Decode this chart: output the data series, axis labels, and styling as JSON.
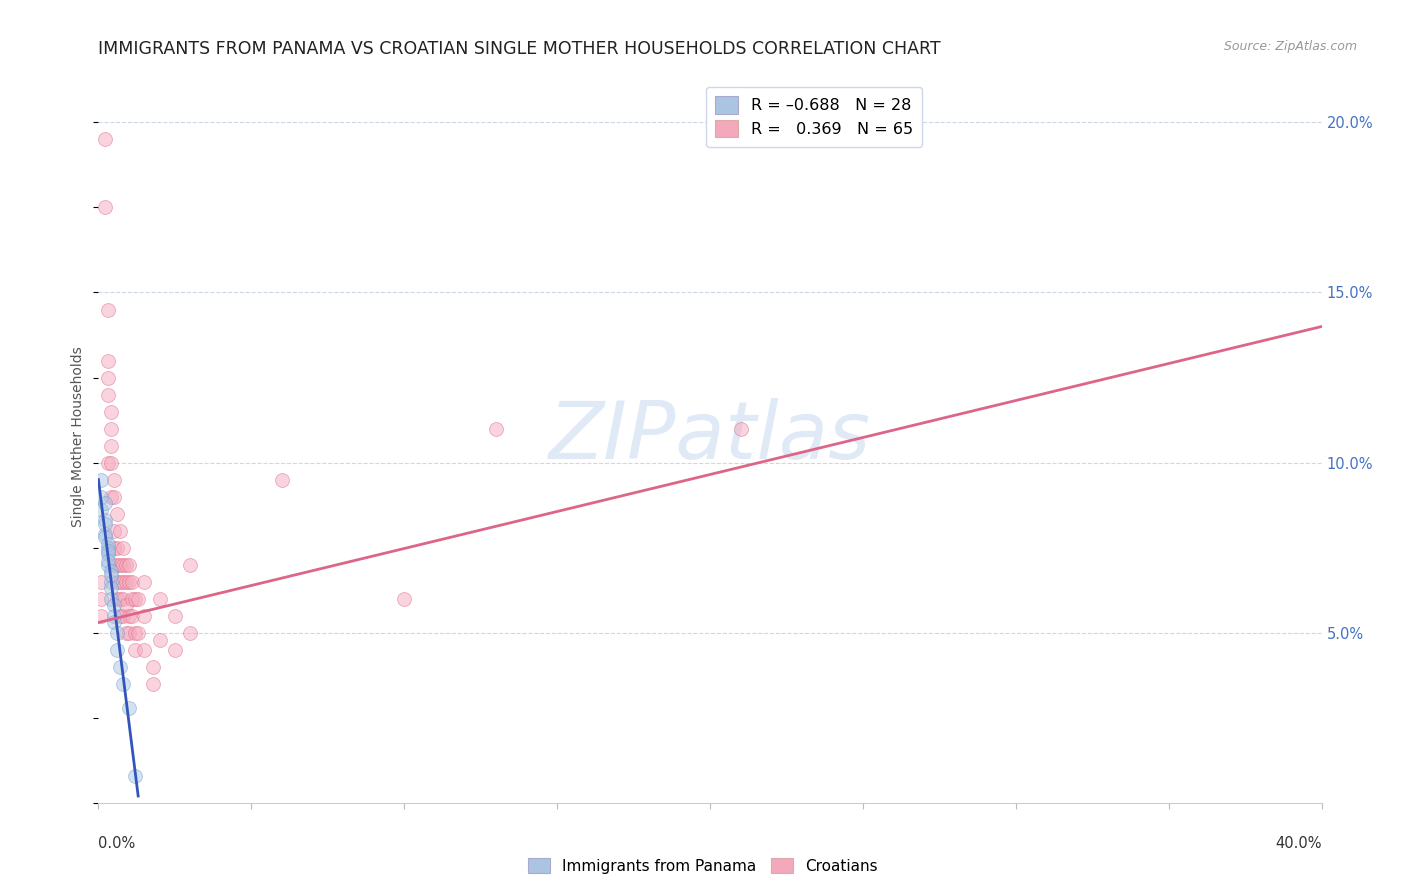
{
  "title": "IMMIGRANTS FROM PANAMA VS CROATIAN SINGLE MOTHER HOUSEHOLDS CORRELATION CHART",
  "source": "Source: ZipAtlas.com",
  "ylabel": "Single Mother Households",
  "ytick_values": [
    0.05,
    0.1,
    0.15,
    0.2
  ],
  "xlim": [
    0.0,
    0.4
  ],
  "ylim": [
    0.0,
    0.215
  ],
  "panama_scatter": {
    "color": "#aac4e2",
    "edge_color": "#6699cc",
    "points": [
      [
        0.001,
        0.095
      ],
      [
        0.001,
        0.09
      ],
      [
        0.001,
        0.086
      ],
      [
        0.002,
        0.088
      ],
      [
        0.002,
        0.083
      ],
      [
        0.002,
        0.079
      ],
      [
        0.002,
        0.082
      ],
      [
        0.002,
        0.078
      ],
      [
        0.003,
        0.075
      ],
      [
        0.003,
        0.076
      ],
      [
        0.003,
        0.073
      ],
      [
        0.003,
        0.07
      ],
      [
        0.003,
        0.074
      ],
      [
        0.003,
        0.071
      ],
      [
        0.004,
        0.068
      ],
      [
        0.004,
        0.065
      ],
      [
        0.004,
        0.067
      ],
      [
        0.004,
        0.063
      ],
      [
        0.004,
        0.06
      ],
      [
        0.005,
        0.058
      ],
      [
        0.005,
        0.055
      ],
      [
        0.005,
        0.053
      ],
      [
        0.006,
        0.05
      ],
      [
        0.006,
        0.045
      ],
      [
        0.007,
        0.04
      ],
      [
        0.008,
        0.035
      ],
      [
        0.01,
        0.028
      ],
      [
        0.012,
        0.008
      ]
    ],
    "trendline_x": [
      0.0,
      0.013
    ],
    "trendline_y": [
      0.095,
      0.002
    ]
  },
  "croatian_scatter": {
    "color": "#f4a8bc",
    "edge_color": "#e06080",
    "points": [
      [
        0.001,
        0.065
      ],
      [
        0.001,
        0.06
      ],
      [
        0.001,
        0.055
      ],
      [
        0.002,
        0.195
      ],
      [
        0.002,
        0.175
      ],
      [
        0.003,
        0.145
      ],
      [
        0.003,
        0.13
      ],
      [
        0.003,
        0.125
      ],
      [
        0.003,
        0.12
      ],
      [
        0.003,
        0.1
      ],
      [
        0.004,
        0.115
      ],
      [
        0.004,
        0.11
      ],
      [
        0.004,
        0.105
      ],
      [
        0.004,
        0.1
      ],
      [
        0.004,
        0.09
      ],
      [
        0.005,
        0.095
      ],
      [
        0.005,
        0.09
      ],
      [
        0.005,
        0.08
      ],
      [
        0.005,
        0.075
      ],
      [
        0.005,
        0.07
      ],
      [
        0.006,
        0.085
      ],
      [
        0.006,
        0.075
      ],
      [
        0.006,
        0.07
      ],
      [
        0.006,
        0.065
      ],
      [
        0.006,
        0.06
      ],
      [
        0.007,
        0.08
      ],
      [
        0.007,
        0.07
      ],
      [
        0.007,
        0.065
      ],
      [
        0.007,
        0.06
      ],
      [
        0.007,
        0.055
      ],
      [
        0.008,
        0.075
      ],
      [
        0.008,
        0.07
      ],
      [
        0.008,
        0.065
      ],
      [
        0.008,
        0.06
      ],
      [
        0.008,
        0.055
      ],
      [
        0.009,
        0.07
      ],
      [
        0.009,
        0.065
      ],
      [
        0.009,
        0.058
      ],
      [
        0.009,
        0.05
      ],
      [
        0.01,
        0.07
      ],
      [
        0.01,
        0.065
      ],
      [
        0.01,
        0.055
      ],
      [
        0.01,
        0.05
      ],
      [
        0.011,
        0.065
      ],
      [
        0.011,
        0.06
      ],
      [
        0.011,
        0.055
      ],
      [
        0.012,
        0.06
      ],
      [
        0.012,
        0.05
      ],
      [
        0.012,
        0.045
      ],
      [
        0.013,
        0.06
      ],
      [
        0.013,
        0.05
      ],
      [
        0.015,
        0.065
      ],
      [
        0.015,
        0.055
      ],
      [
        0.015,
        0.045
      ],
      [
        0.018,
        0.04
      ],
      [
        0.018,
        0.035
      ],
      [
        0.02,
        0.06
      ],
      [
        0.02,
        0.048
      ],
      [
        0.025,
        0.055
      ],
      [
        0.025,
        0.045
      ],
      [
        0.03,
        0.07
      ],
      [
        0.03,
        0.05
      ],
      [
        0.06,
        0.095
      ],
      [
        0.1,
        0.06
      ],
      [
        0.13,
        0.11
      ],
      [
        0.21,
        0.11
      ]
    ],
    "trendline_x": [
      0.0,
      0.4
    ],
    "trendline_y": [
      0.053,
      0.14
    ]
  },
  "watermark": "ZIPatlas",
  "background_color": "#ffffff",
  "grid_color": "#ccd8e8",
  "title_fontsize": 12.5,
  "axis_label_fontsize": 10,
  "tick_fontsize": 10.5,
  "right_tick_color": "#4472c4",
  "scatter_size": 100,
  "scatter_alpha": 0.5,
  "trendline_blue": "#3355bb",
  "trendline_pink": "#dd6688"
}
